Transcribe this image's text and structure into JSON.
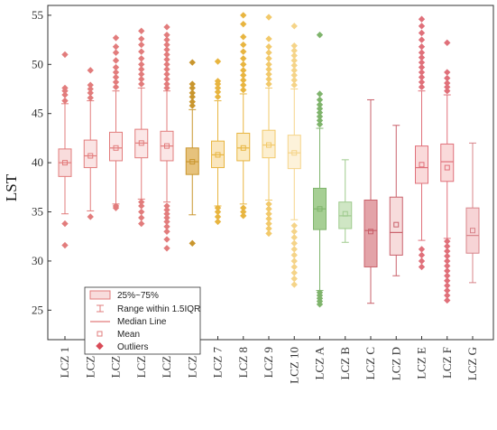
{
  "chart_data": {
    "type": "box",
    "ylabel": "LST",
    "xlabel": "",
    "ylim": [
      22,
      56
    ],
    "yticks": [
      25,
      30,
      35,
      40,
      45,
      50,
      55
    ],
    "categories": [
      "LCZ 1",
      "LCZ 2",
      "LCZ 3",
      "LCZ 4",
      "LCZ 5",
      "LCZ 6",
      "LCZ 7",
      "LCZ 8",
      "LCZ 9",
      "LCZ 10",
      "LCZ A",
      "LCZ B",
      "LCZ C",
      "LCZ D",
      "LCZ E",
      "LCZ F",
      "LCZ G"
    ],
    "colors": [
      "#e27c7c",
      "#e27c7c",
      "#e27c7c",
      "#e27c7c",
      "#e27c7c",
      "#c9962e",
      "#e8b540",
      "#e8b540",
      "#f2c96a",
      "#f5d489",
      "#7fb46c",
      "#9fcb8e",
      "#c9616b",
      "#c9616b",
      "#e0707a",
      "#e0707a",
      "#d8848a"
    ],
    "box_fills": [
      "#f8dcdc",
      "#fae4e4",
      "#fbe6e6",
      "#fbe6e6",
      "#fbe6e6",
      "#e6c27c",
      "#fae6bd",
      "#fbebc4",
      "#fcefd0",
      "#fdf2da",
      "#a6cf94",
      "#cfe6c4",
      "#e3a3a8",
      "#f7dcdc",
      "#fadada",
      "#fadada",
      "#f7d4d6"
    ],
    "boxes": [
      {
        "q1": 38.6,
        "median": 40.0,
        "q3": 41.4,
        "whislo": 34.8,
        "whishi": 46.0,
        "mean": 40.0,
        "outliers": [
          31.6,
          33.8,
          46.3,
          46.9,
          47.3,
          47.6,
          51.0
        ]
      },
      {
        "q1": 39.5,
        "median": 40.7,
        "q3": 42.3,
        "whislo": 35.1,
        "whishi": 46.3,
        "mean": 40.7,
        "outliers": [
          34.5,
          46.6,
          47.1,
          47.5,
          47.9,
          49.4
        ]
      },
      {
        "q1": 40.2,
        "median": 41.5,
        "q3": 43.1,
        "whislo": 35.8,
        "whishi": 47.3,
        "mean": 41.5,
        "outliers": [
          35.4,
          35.6,
          47.7,
          48.2,
          48.7,
          49.2,
          49.7,
          50.4,
          51.2,
          51.8,
          52.7
        ]
      },
      {
        "q1": 40.5,
        "median": 42.0,
        "q3": 43.4,
        "whislo": 36.3,
        "whishi": 47.6,
        "mean": 42.0,
        "outliers": [
          33.8,
          34.4,
          35.0,
          35.6,
          36.0,
          48.0,
          48.5,
          49.0,
          49.5,
          50.0,
          50.6,
          51.3,
          52.0,
          52.6,
          53.4
        ]
      },
      {
        "q1": 40.2,
        "median": 41.7,
        "q3": 43.2,
        "whislo": 36.0,
        "whishi": 47.3,
        "mean": 41.7,
        "outliers": [
          31.3,
          32.2,
          33.0,
          33.5,
          34.0,
          34.4,
          34.8,
          35.2,
          35.6,
          47.6,
          48.0,
          48.5,
          49.0,
          49.5,
          50.0,
          50.5,
          51.0,
          51.5,
          52.0,
          52.5,
          53.0,
          53.8
        ]
      },
      {
        "q1": 38.8,
        "median": 40.1,
        "q3": 41.5,
        "whislo": 34.7,
        "whishi": 45.4,
        "mean": 40.1,
        "outliers": [
          31.8,
          45.8,
          46.2,
          46.7,
          47.1,
          47.6,
          48.0,
          50.2
        ]
      },
      {
        "q1": 39.5,
        "median": 40.8,
        "q3": 42.2,
        "whislo": 35.6,
        "whishi": 46.3,
        "mean": 40.8,
        "outliers": [
          34.0,
          34.5,
          35.0,
          35.4,
          46.7,
          47.2,
          47.6,
          48.0,
          48.3,
          50.3
        ]
      },
      {
        "q1": 40.2,
        "median": 41.5,
        "q3": 43.0,
        "whislo": 35.8,
        "whishi": 47.0,
        "mean": 41.5,
        "outliers": [
          34.6,
          35.0,
          35.4,
          47.4,
          47.9,
          48.4,
          48.9,
          49.4,
          50.0,
          50.6,
          51.3,
          52.0,
          52.8,
          54.1,
          55.0
        ]
      },
      {
        "q1": 40.5,
        "median": 41.8,
        "q3": 43.3,
        "whislo": 36.2,
        "whishi": 47.6,
        "mean": 41.8,
        "outliers": [
          32.8,
          33.3,
          33.8,
          34.3,
          34.8,
          35.3,
          35.8,
          48.0,
          48.5,
          49.0,
          49.5,
          50.0,
          50.6,
          51.2,
          51.8,
          52.6,
          54.8
        ]
      },
      {
        "q1": 39.4,
        "median": 41.0,
        "q3": 42.8,
        "whislo": 34.2,
        "whishi": 47.5,
        "mean": 41.0,
        "outliers": [
          27.6,
          28.2,
          28.8,
          29.4,
          30.0,
          30.6,
          31.2,
          31.8,
          32.4,
          33.0,
          33.6,
          47.9,
          48.4,
          48.9,
          49.4,
          49.9,
          50.4,
          50.9,
          51.4,
          51.9,
          53.9
        ]
      },
      {
        "q1": 33.2,
        "median": 35.3,
        "q3": 37.4,
        "whislo": 27.0,
        "whishi": 43.5,
        "mean": 35.3,
        "outliers": [
          25.6,
          25.9,
          26.2,
          26.5,
          26.8,
          43.9,
          44.3,
          44.7,
          45.1,
          45.5,
          45.9,
          46.4,
          47.0,
          53.0
        ]
      },
      {
        "q1": 33.3,
        "median": 34.6,
        "q3": 36.0,
        "whislo": 31.9,
        "whishi": 40.3,
        "mean": 34.8,
        "outliers": []
      },
      {
        "q1": 29.4,
        "median": 33.1,
        "q3": 36.2,
        "whislo": 25.7,
        "whishi": 46.4,
        "mean": 33.0,
        "outliers": []
      },
      {
        "q1": 30.6,
        "median": 32.9,
        "q3": 36.5,
        "whislo": 28.5,
        "whishi": 43.8,
        "mean": 33.7,
        "outliers": []
      },
      {
        "q1": 37.9,
        "median": 39.5,
        "q3": 41.7,
        "whislo": 32.1,
        "whishi": 47.3,
        "mean": 39.8,
        "outliers": [
          29.4,
          30.0,
          30.6,
          31.2,
          47.7,
          48.2,
          48.7,
          49.2,
          49.7,
          50.2,
          50.7,
          51.2,
          51.8,
          52.5,
          53.2,
          53.9,
          54.6
        ]
      },
      {
        "q1": 38.1,
        "median": 40.1,
        "q3": 41.9,
        "whislo": 32.3,
        "whishi": 46.9,
        "mean": 39.5,
        "outliers": [
          26.0,
          26.5,
          27.0,
          27.5,
          28.0,
          28.5,
          29.0,
          29.5,
          30.0,
          30.5,
          31.0,
          31.5,
          32.0,
          47.3,
          47.7,
          48.1,
          48.6,
          49.2,
          52.2
        ]
      },
      {
        "q1": 30.8,
        "median": 32.6,
        "q3": 35.4,
        "whislo": 27.8,
        "whishi": 42.0,
        "mean": 33.1,
        "outliers": []
      }
    ],
    "legend": {
      "position": "bottom-left",
      "items": [
        "25%~75%",
        "Range within 1.5IQR",
        "Median Line",
        "Mean",
        "Outliers"
      ]
    }
  }
}
